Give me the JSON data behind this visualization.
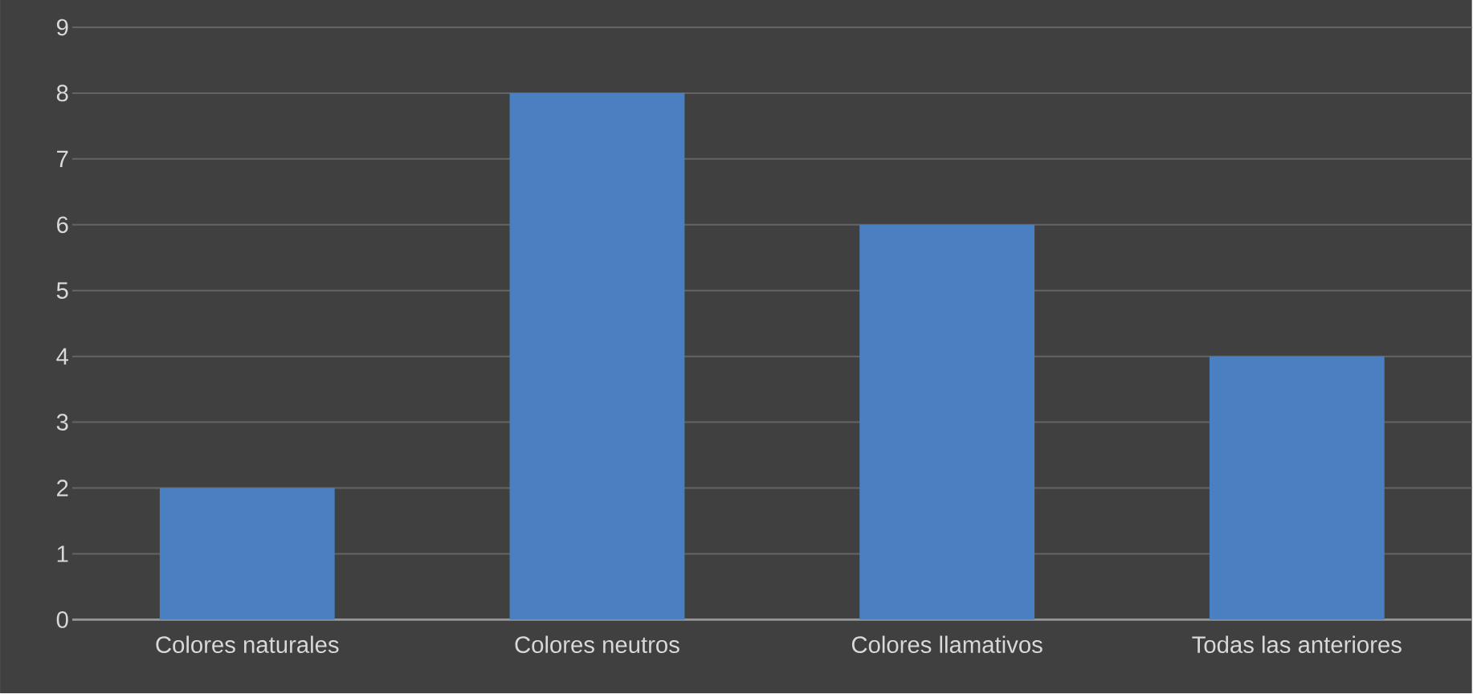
{
  "chart_data": {
    "type": "bar",
    "categories": [
      "Colores naturales",
      "Colores neutros",
      "Colores llamativos",
      "Todas las anteriores"
    ],
    "values": [
      2,
      8,
      6,
      4
    ],
    "color": "#4a7fc1",
    "ylim": [
      0,
      9
    ],
    "yticks": [
      0,
      1,
      2,
      3,
      4,
      5,
      6,
      7,
      8,
      9
    ],
    "grid": "y"
  }
}
